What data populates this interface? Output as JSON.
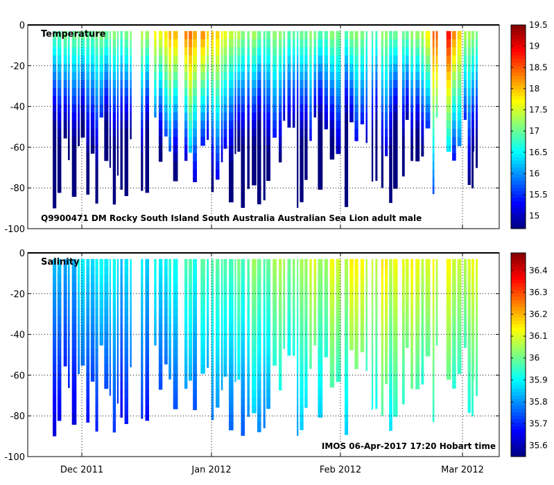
{
  "chart_data": [
    {
      "type": "heatmap",
      "title": "Temperature",
      "annotation": "Q9900471 DM Rocky South Island South Australia Australian Sea Lion adult male",
      "xlabel": "",
      "ylabel": "",
      "y_ticks": [
        "0",
        "-20",
        "-40",
        "-60",
        "-80",
        "-100"
      ],
      "ylim": [
        -100,
        0
      ],
      "x_ticks": [
        "Dec 2011",
        "Jan 2012",
        "Feb 2012",
        "Mar 2012"
      ],
      "colorbar": {
        "min": 14.7,
        "max": 19.5,
        "ticks": [
          "19.5",
          "19",
          "18.5",
          "18",
          "17.5",
          "17",
          "16.5",
          "16",
          "15.5",
          "15"
        ],
        "tick_values": [
          19.5,
          19,
          18.5,
          18,
          17.5,
          17,
          16.5,
          16,
          15.5,
          15
        ]
      }
    },
    {
      "type": "heatmap",
      "title": "Salinity",
      "annotation": "IMOS 06-Apr-2017 17:20 Hobart time",
      "xlabel": "",
      "ylabel": "",
      "y_ticks": [
        "0",
        "-20",
        "-40",
        "-60",
        "-80",
        "-100"
      ],
      "ylim": [
        -100,
        0
      ],
      "x_ticks": [
        "Dec 2011",
        "Jan 2012",
        "Feb 2012",
        "Mar 2012"
      ],
      "colorbar": {
        "min": 35.55,
        "max": 36.48,
        "ticks": [
          "36.4",
          "36.3",
          "36.2",
          "36.1",
          "36",
          "35.9",
          "35.8",
          "35.7",
          "35.6"
        ],
        "tick_values": [
          36.4,
          36.3,
          36.2,
          36.1,
          36.0,
          35.9,
          35.8,
          35.7,
          35.6
        ]
      }
    }
  ],
  "colormap": [
    "#00007f",
    "#0000ff",
    "#007fff",
    "#00ffff",
    "#7fff7f",
    "#ffff00",
    "#ff7f00",
    "#ff0000",
    "#7f0000"
  ]
}
